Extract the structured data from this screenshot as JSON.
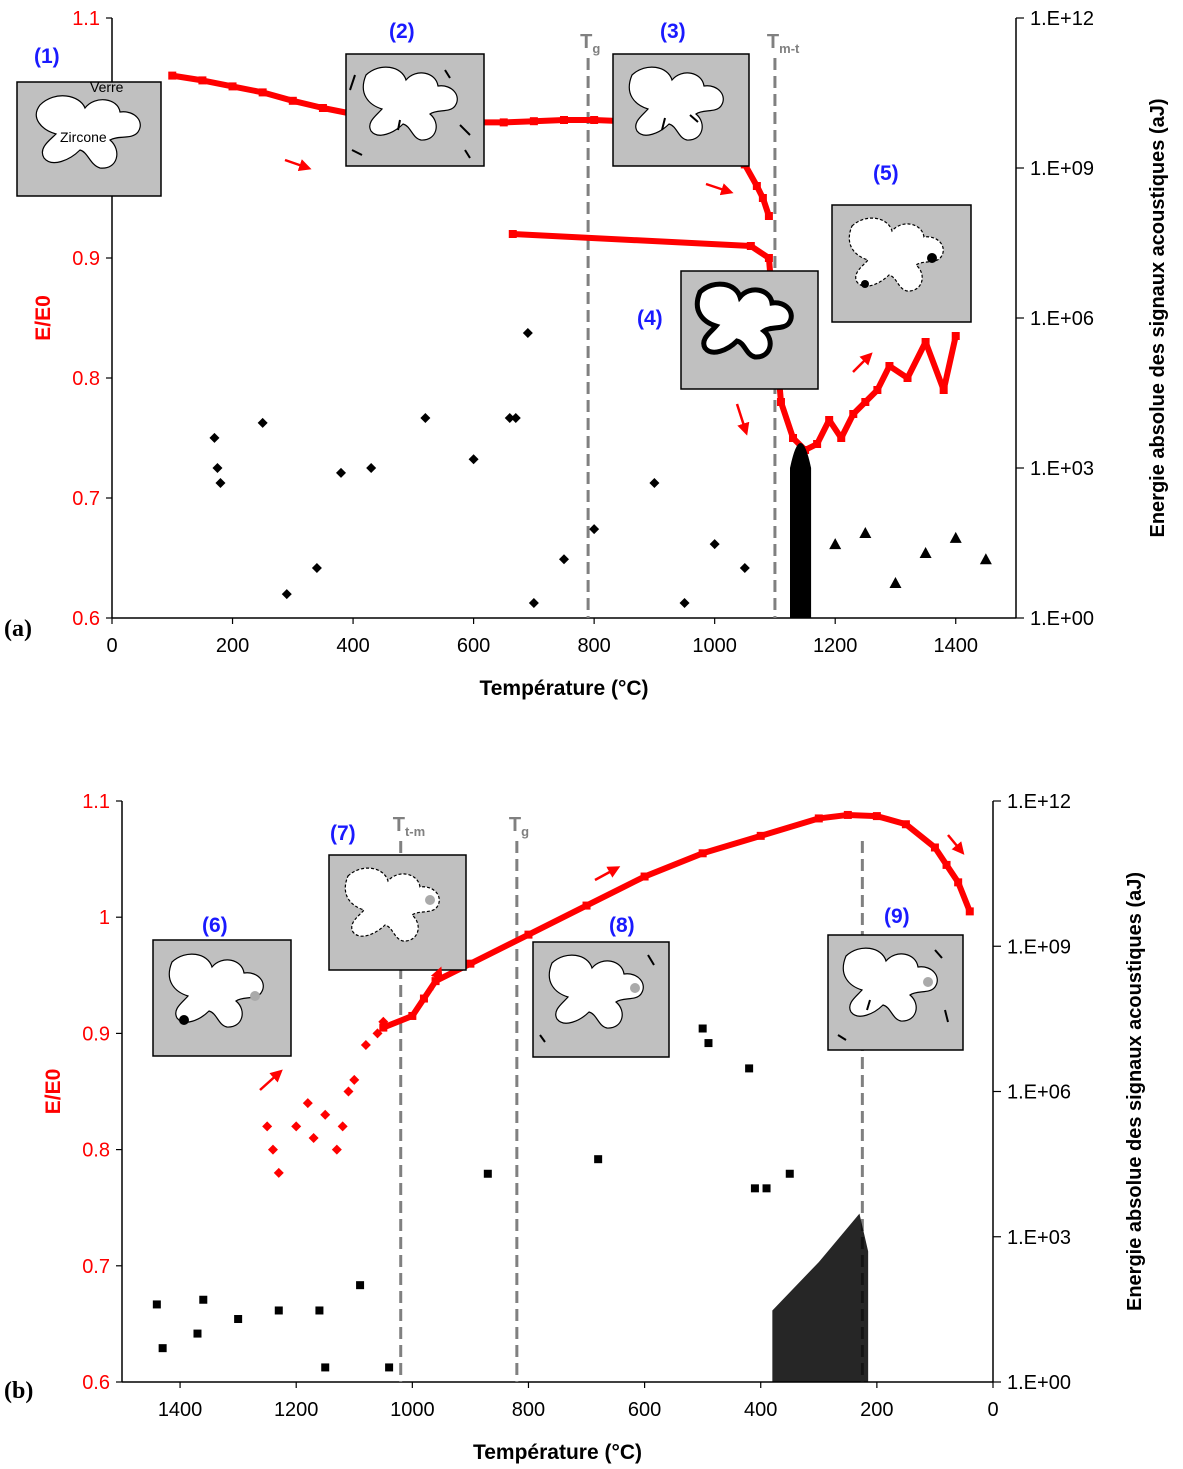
{
  "chart_data": [
    {
      "panel": "(a)",
      "type": "scatter",
      "xlabel": "Température (°C)",
      "ylabel_left": "E/E0",
      "ylabel_right": "Energie absolue des signaux acoustiques (aJ)",
      "xlim": [
        0,
        1500
      ],
      "ylim_left": [
        0.6,
        1.1
      ],
      "ylim_right": [
        1,
        1000000000000.0
      ],
      "right_scale": "log",
      "x_ticks": [
        "0",
        "200",
        "400",
        "600",
        "800",
        "1000",
        "1200",
        "1400"
      ],
      "y_ticks_left": [
        "0.6",
        "0.7",
        "0.8",
        "0.9",
        "1",
        "1.1"
      ],
      "y_ticks_right": [
        "1.E+00",
        "1.E+03",
        "1.E+06",
        "1.E+09",
        "1.E+12"
      ],
      "vlines": [
        {
          "x": 790,
          "label": "T",
          "sub": "g"
        },
        {
          "x": 1100,
          "label": "T",
          "sub": "m-t"
        }
      ],
      "stages": [
        {
          "label": "(1)",
          "inset_labels": [
            "Verre",
            "Zircone"
          ]
        },
        {
          "label": "(2)"
        },
        {
          "label": "(3)"
        },
        {
          "label": "(4)"
        },
        {
          "label": "(5)"
        }
      ],
      "series": [
        {
          "axis": "left",
          "color": "#ff0000",
          "marker": "square",
          "name": "",
          "x": [
            100,
            150,
            200,
            250,
            300,
            350,
            400,
            450,
            500,
            550,
            600,
            650,
            700,
            750,
            800,
            850,
            900,
            950,
            1000,
            1030,
            1050,
            1070,
            1080,
            1090
          ],
          "y": [
            1.052,
            1.048,
            1.043,
            1.038,
            1.031,
            1.025,
            1.02,
            1.017,
            1.014,
            1.013,
            1.013,
            1.013,
            1.014,
            1.015,
            1.015,
            1.014,
            1.012,
            1.008,
            1.0,
            0.99,
            0.978,
            0.96,
            0.95,
            0.935
          ]
        },
        {
          "axis": "left",
          "color": "#ff0000",
          "marker": "square",
          "name": "",
          "x": [
            665,
            1060,
            1090,
            1110,
            1130,
            1150,
            1170,
            1190,
            1210,
            1230,
            1250,
            1270,
            1290,
            1320,
            1350,
            1380,
            1400
          ],
          "y": [
            0.92,
            0.91,
            0.9,
            0.78,
            0.75,
            0.74,
            0.745,
            0.765,
            0.75,
            0.77,
            0.78,
            0.79,
            0.81,
            0.8,
            0.83,
            0.79,
            0.835
          ]
        },
        {
          "axis": "right",
          "color": "#000000",
          "marker": "diamond",
          "name": "",
          "x": [
            170,
            175,
            180,
            250,
            290,
            340,
            380,
            430,
            520,
            600,
            660,
            670,
            690,
            700,
            750,
            800,
            900,
            950,
            1000,
            1050
          ],
          "y": [
            4000.0,
            1000.0,
            500,
            8000.0,
            3,
            10,
            800,
            1000,
            10000.0,
            1500,
            10000.0,
            10000.0,
            500000.0,
            2,
            15,
            60,
            500,
            2,
            30,
            10
          ]
        },
        {
          "axis": "right",
          "color": "#000000",
          "marker": "triangle",
          "name": "",
          "x": [
            1150,
            1200,
            1250,
            1300,
            1350,
            1400,
            1450
          ],
          "y": [
            20,
            30,
            50,
            5,
            20,
            40,
            15
          ]
        }
      ]
    },
    {
      "panel": "(b)",
      "type": "scatter",
      "xlabel": "Température (°C)",
      "ylabel_left": "E/E0",
      "ylabel_right": "Energie absolue des signaux acoustiques (aJ)",
      "xlim": [
        1500,
        0
      ],
      "ylim_left": [
        0.6,
        1.1
      ],
      "ylim_right": [
        1,
        1000000000000.0
      ],
      "right_scale": "log",
      "x_ticks": [
        "1400",
        "1200",
        "1000",
        "800",
        "600",
        "400",
        "200",
        "0"
      ],
      "y_ticks_left": [
        "0.6",
        "0.7",
        "0.8",
        "0.9",
        "1",
        "1.1"
      ],
      "y_ticks_right": [
        "1.E+00",
        "1.E+03",
        "1.E+06",
        "1.E+09",
        "1.E+12"
      ],
      "vlines": [
        {
          "x": 1020,
          "label": "T",
          "sub": "t-m"
        },
        {
          "x": 820,
          "label": "T",
          "sub": "g"
        },
        {
          "x": 225,
          "label": "",
          "sub": ""
        }
      ],
      "stages": [
        {
          "label": "(6)"
        },
        {
          "label": "(7)"
        },
        {
          "label": "(8)"
        },
        {
          "label": "(9)"
        }
      ],
      "series": [
        {
          "axis": "left",
          "color": "#ff0000",
          "marker": "diamond",
          "name": "",
          "x": [
            1250,
            1230,
            1240,
            1200,
            1180,
            1170,
            1150,
            1130,
            1120,
            1110,
            1100,
            1080,
            1060,
            1050
          ],
          "y": [
            0.82,
            0.78,
            0.8,
            0.82,
            0.84,
            0.81,
            0.83,
            0.8,
            0.82,
            0.85,
            0.86,
            0.89,
            0.9,
            0.91
          ]
        },
        {
          "axis": "left",
          "color": "#ff0000",
          "marker": "square",
          "name": "",
          "x": [
            1050,
            1000,
            980,
            960,
            900,
            800,
            700,
            600,
            500,
            400,
            300,
            250,
            200,
            150,
            100,
            80,
            60,
            40
          ],
          "y": [
            0.905,
            0.915,
            0.93,
            0.945,
            0.96,
            0.985,
            1.01,
            1.035,
            1.055,
            1.07,
            1.085,
            1.088,
            1.087,
            1.08,
            1.06,
            1.045,
            1.03,
            1.005
          ]
        },
        {
          "axis": "right",
          "color": "#000000",
          "marker": "square",
          "name": "",
          "x": [
            1440,
            1430,
            1370,
            1360,
            1300,
            1230,
            1160,
            1150,
            1090,
            1040,
            870,
            680,
            500,
            490,
            420,
            410,
            390,
            350
          ],
          "y": [
            40,
            5,
            10,
            50,
            20,
            30,
            30,
            2,
            100,
            2,
            20000.0,
            40000.0,
            20000000.0,
            10000000.0,
            3000000.0,
            10000.0,
            10000.0,
            20000.0
          ]
        }
      ]
    }
  ]
}
